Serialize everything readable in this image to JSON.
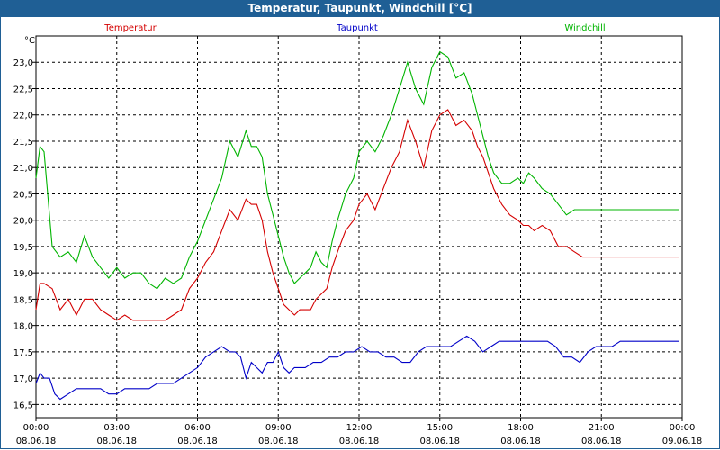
{
  "window": {
    "title": "Temperatur, Taupunkt, Windchill [°C]"
  },
  "chart_data": {
    "type": "line",
    "ylabel": "°C",
    "ylim": [
      16.25,
      23.5
    ],
    "xlim_hours": [
      0,
      24
    ],
    "yticks": [
      "16,5",
      "17,0",
      "17,5",
      "18,0",
      "18,5",
      "19,0",
      "19,5",
      "20,0",
      "20,5",
      "21,0",
      "21,5",
      "22,0",
      "22,5",
      "23,0"
    ],
    "ytick_values": [
      16.5,
      17.0,
      17.5,
      18.0,
      18.5,
      19.0,
      19.5,
      20.0,
      20.5,
      21.0,
      21.5,
      22.0,
      22.5,
      23.0
    ],
    "xticks": [
      {
        "h": 0,
        "time": "00:00",
        "date": "08.06.18"
      },
      {
        "h": 3,
        "time": "03:00",
        "date": "08.06.18"
      },
      {
        "h": 6,
        "time": "06:00",
        "date": "08.06.18"
      },
      {
        "h": 9,
        "time": "09:00",
        "date": "08.06.18"
      },
      {
        "h": 12,
        "time": "12:00",
        "date": "08.06.18"
      },
      {
        "h": 15,
        "time": "15:00",
        "date": "08.06.18"
      },
      {
        "h": 18,
        "time": "18:00",
        "date": "08.06.18"
      },
      {
        "h": 21,
        "time": "21:00",
        "date": "08.06.18"
      },
      {
        "h": 24,
        "time": "00:00",
        "date": "09.06.18"
      }
    ],
    "series": [
      {
        "name": "Temperatur",
        "color": "#d40000",
        "x": [
          0,
          0.15,
          0.3,
          0.6,
          0.9,
          1.2,
          1.5,
          1.8,
          2.1,
          2.4,
          2.7,
          3.0,
          3.3,
          3.6,
          3.9,
          4.2,
          4.5,
          4.8,
          5.1,
          5.4,
          5.7,
          6.0,
          6.3,
          6.6,
          6.9,
          7.2,
          7.5,
          7.8,
          8.0,
          8.2,
          8.4,
          8.6,
          8.8,
          9.0,
          9.2,
          9.4,
          9.6,
          9.8,
          10.0,
          10.2,
          10.4,
          10.6,
          10.8,
          11.0,
          11.2,
          11.5,
          11.8,
          12.0,
          12.3,
          12.6,
          12.9,
          13.2,
          13.5,
          13.8,
          14.1,
          14.4,
          14.7,
          15.0,
          15.3,
          15.6,
          15.9,
          16.2,
          16.4,
          16.6,
          16.8,
          17.0,
          17.3,
          17.6,
          17.9,
          18.1,
          18.3,
          18.5,
          18.8,
          19.1,
          19.4,
          19.7,
          20.0,
          20.3,
          20.6,
          20.9,
          21.2,
          21.5,
          21.8,
          22.1,
          22.4,
          22.7,
          23.0,
          23.3,
          23.6,
          23.9
        ],
        "values": [
          18.3,
          18.8,
          18.8,
          18.7,
          18.3,
          18.5,
          18.2,
          18.5,
          18.5,
          18.3,
          18.2,
          18.1,
          18.2,
          18.1,
          18.1,
          18.1,
          18.1,
          18.1,
          18.2,
          18.3,
          18.7,
          18.9,
          19.2,
          19.4,
          19.8,
          20.2,
          20.0,
          20.4,
          20.3,
          20.3,
          20.0,
          19.4,
          19.0,
          18.7,
          18.4,
          18.3,
          18.2,
          18.3,
          18.3,
          18.3,
          18.5,
          18.6,
          18.7,
          19.1,
          19.4,
          19.8,
          20.0,
          20.3,
          20.5,
          20.2,
          20.6,
          21.0,
          21.3,
          21.9,
          21.5,
          21.0,
          21.7,
          22.0,
          22.1,
          21.8,
          21.9,
          21.7,
          21.4,
          21.2,
          20.9,
          20.6,
          20.3,
          20.1,
          20.0,
          19.9,
          19.9,
          19.8,
          19.9,
          19.8,
          19.5,
          19.5,
          19.4,
          19.3,
          19.3,
          19.3,
          19.3,
          19.3,
          19.3,
          19.3,
          19.3,
          19.3,
          19.3,
          19.3,
          19.3,
          19.3
        ]
      },
      {
        "name": "Taupunkt",
        "color": "#0000c8",
        "x": [
          0,
          0.15,
          0.3,
          0.5,
          0.7,
          0.9,
          1.2,
          1.5,
          1.8,
          2.1,
          2.4,
          2.7,
          3.0,
          3.3,
          3.6,
          3.9,
          4.2,
          4.5,
          4.8,
          5.1,
          5.4,
          5.7,
          6.0,
          6.3,
          6.6,
          6.9,
          7.2,
          7.4,
          7.6,
          7.8,
          8.0,
          8.2,
          8.4,
          8.6,
          8.8,
          9.0,
          9.2,
          9.4,
          9.6,
          9.8,
          10.0,
          10.3,
          10.6,
          10.9,
          11.2,
          11.5,
          11.8,
          12.1,
          12.4,
          12.7,
          13.0,
          13.3,
          13.6,
          13.9,
          14.2,
          14.5,
          14.8,
          15.1,
          15.4,
          15.7,
          16.0,
          16.3,
          16.6,
          16.9,
          17.2,
          17.5,
          17.8,
          18.1,
          18.4,
          18.7,
          19.0,
          19.3,
          19.6,
          19.9,
          20.2,
          20.5,
          20.8,
          21.1,
          21.4,
          21.7,
          22.0,
          22.3,
          22.6,
          22.9,
          23.2,
          23.5,
          23.9
        ],
        "values": [
          16.9,
          17.1,
          17.0,
          17.0,
          16.7,
          16.6,
          16.7,
          16.8,
          16.8,
          16.8,
          16.8,
          16.7,
          16.7,
          16.8,
          16.8,
          16.8,
          16.8,
          16.9,
          16.9,
          16.9,
          17.0,
          17.1,
          17.2,
          17.4,
          17.5,
          17.6,
          17.5,
          17.5,
          17.4,
          17.0,
          17.3,
          17.2,
          17.1,
          17.3,
          17.3,
          17.5,
          17.2,
          17.1,
          17.2,
          17.2,
          17.2,
          17.3,
          17.3,
          17.4,
          17.4,
          17.5,
          17.5,
          17.6,
          17.5,
          17.5,
          17.4,
          17.4,
          17.3,
          17.3,
          17.5,
          17.6,
          17.6,
          17.6,
          17.6,
          17.7,
          17.8,
          17.7,
          17.5,
          17.6,
          17.7,
          17.7,
          17.7,
          17.7,
          17.7,
          17.7,
          17.7,
          17.6,
          17.4,
          17.4,
          17.3,
          17.5,
          17.6,
          17.6,
          17.6,
          17.7,
          17.7,
          17.7,
          17.7,
          17.7,
          17.7,
          17.7,
          17.7
        ]
      },
      {
        "name": "Windchill",
        "color": "#00b400",
        "x": [
          0,
          0.15,
          0.3,
          0.6,
          0.9,
          1.2,
          1.5,
          1.8,
          2.1,
          2.4,
          2.7,
          3.0,
          3.3,
          3.6,
          3.9,
          4.2,
          4.5,
          4.8,
          5.1,
          5.4,
          5.7,
          6.0,
          6.3,
          6.6,
          6.9,
          7.2,
          7.5,
          7.8,
          8.0,
          8.2,
          8.4,
          8.6,
          8.8,
          9.0,
          9.2,
          9.4,
          9.6,
          9.8,
          10.0,
          10.2,
          10.4,
          10.6,
          10.8,
          11.0,
          11.2,
          11.5,
          11.8,
          12.0,
          12.3,
          12.6,
          12.9,
          13.2,
          13.5,
          13.8,
          14.1,
          14.4,
          14.7,
          15.0,
          15.3,
          15.6,
          15.9,
          16.2,
          16.4,
          16.6,
          16.8,
          17.0,
          17.3,
          17.6,
          17.9,
          18.1,
          18.3,
          18.5,
          18.8,
          19.1,
          19.4,
          19.7,
          20.0,
          20.3,
          20.6,
          20.9,
          21.2,
          21.5,
          21.8,
          22.1,
          22.4,
          22.7,
          23.0,
          23.3,
          23.6,
          23.9
        ],
        "values": [
          20.8,
          21.4,
          21.3,
          19.5,
          19.3,
          19.4,
          19.2,
          19.7,
          19.3,
          19.1,
          18.9,
          19.1,
          18.9,
          19.0,
          19.0,
          18.8,
          18.7,
          18.9,
          18.8,
          18.9,
          19.3,
          19.6,
          20.0,
          20.4,
          20.8,
          21.5,
          21.2,
          21.7,
          21.4,
          21.4,
          21.2,
          20.5,
          20.1,
          19.7,
          19.3,
          19.0,
          18.8,
          18.9,
          19.0,
          19.1,
          19.4,
          19.2,
          19.1,
          19.6,
          20.0,
          20.5,
          20.8,
          21.3,
          21.5,
          21.3,
          21.6,
          22.0,
          22.5,
          23.0,
          22.5,
          22.2,
          22.9,
          23.2,
          23.1,
          22.7,
          22.8,
          22.4,
          22.0,
          21.6,
          21.2,
          20.9,
          20.7,
          20.7,
          20.8,
          20.7,
          20.9,
          20.8,
          20.6,
          20.5,
          20.3,
          20.1,
          20.2,
          20.2,
          20.2,
          20.2,
          20.2,
          20.2,
          20.2,
          20.2,
          20.2,
          20.2,
          20.2,
          20.2,
          20.2,
          20.2
        ]
      }
    ]
  }
}
